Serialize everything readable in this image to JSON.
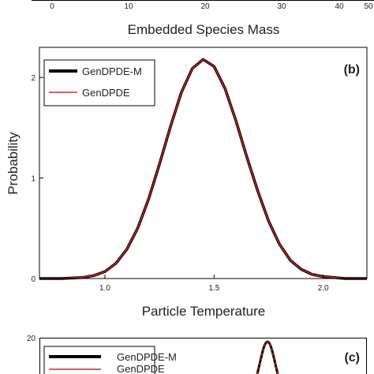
{
  "figure": {
    "top_panel": {
      "tick_labels": [
        "0",
        "10",
        "20",
        "30",
        "40",
        "50"
      ],
      "xlabel": "Embedded Species Mass"
    },
    "panel_b": {
      "chart_data": {
        "type": "line",
        "panel_label": "(b)",
        "xlabel": "Particle Temperature",
        "ylabel": "Probability",
        "xlim": [
          0.7,
          2.2
        ],
        "ylim": [
          0,
          2.3
        ],
        "xticks": [
          1.0,
          1.5,
          2.0
        ],
        "xtick_labels": [
          "1.0",
          "1.5",
          "2.0"
        ],
        "yticks": [
          0,
          1,
          2
        ],
        "ytick_labels": [
          "0",
          "1",
          "2"
        ],
        "grid": false,
        "legend_position": "top-left",
        "series": [
          {
            "name": "GenDPDE-M",
            "color": "#000000",
            "x": [
              0.7,
              0.8,
              0.9,
              0.95,
              1.0,
              1.05,
              1.1,
              1.15,
              1.2,
              1.25,
              1.3,
              1.35,
              1.4,
              1.45,
              1.5,
              1.55,
              1.6,
              1.65,
              1.7,
              1.75,
              1.8,
              1.85,
              1.9,
              1.95,
              2.0,
              2.05,
              2.1,
              2.2
            ],
            "y": [
              0.0,
              0.0,
              0.01,
              0.03,
              0.07,
              0.15,
              0.29,
              0.5,
              0.79,
              1.14,
              1.51,
              1.85,
              2.09,
              2.18,
              2.11,
              1.89,
              1.57,
              1.21,
              0.87,
              0.57,
              0.34,
              0.18,
              0.09,
              0.04,
              0.02,
              0.01,
              0.0,
              0.0
            ]
          },
          {
            "name": "GenDPDE",
            "color": "#d62728",
            "x": [
              0.7,
              0.8,
              0.9,
              0.95,
              1.0,
              1.05,
              1.1,
              1.15,
              1.2,
              1.25,
              1.3,
              1.35,
              1.4,
              1.45,
              1.5,
              1.55,
              1.6,
              1.65,
              1.7,
              1.75,
              1.8,
              1.85,
              1.9,
              1.95,
              2.0,
              2.05,
              2.1,
              2.2
            ],
            "y": [
              0.0,
              0.0,
              0.01,
              0.03,
              0.07,
              0.15,
              0.29,
              0.5,
              0.79,
              1.14,
              1.51,
              1.85,
              2.09,
              2.18,
              2.11,
              1.89,
              1.57,
              1.21,
              0.87,
              0.57,
              0.34,
              0.18,
              0.09,
              0.04,
              0.02,
              0.01,
              0.0,
              0.0
            ]
          }
        ]
      }
    },
    "panel_c": {
      "panel_label": "(c)",
      "ytick_labels": [
        "20"
      ],
      "legend": [
        "GenDPDE-M",
        "GenDPDE"
      ]
    }
  }
}
